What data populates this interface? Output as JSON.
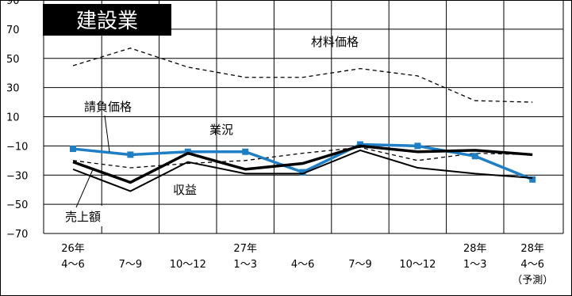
{
  "chart_data": {
    "type": "line",
    "title": "建設業",
    "ylim": [
      -70,
      90
    ],
    "yticks": [
      90,
      70,
      50,
      30,
      10,
      -10,
      -30,
      -50,
      -70
    ],
    "grid": true,
    "categories": [
      {
        "line1": "26年",
        "line2": "4〜6",
        "line3": ""
      },
      {
        "line1": "",
        "line2": "7〜9",
        "line3": ""
      },
      {
        "line1": "",
        "line2": "10〜12",
        "line3": ""
      },
      {
        "line1": "27年",
        "line2": "1〜3",
        "line3": ""
      },
      {
        "line1": "",
        "line2": "4〜6",
        "line3": ""
      },
      {
        "line1": "",
        "line2": "7〜9",
        "line3": ""
      },
      {
        "line1": "",
        "line2": "10〜12",
        "line3": ""
      },
      {
        "line1": "28年",
        "line2": "1〜3",
        "line3": ""
      },
      {
        "line1": "28年",
        "line2": "4〜6",
        "line3": "（予測）"
      }
    ],
    "series": [
      {
        "name": "材料価格",
        "style": "dashed",
        "color": "#000000",
        "values": [
          45,
          57,
          44,
          37,
          37,
          43,
          38,
          21,
          20
        ]
      },
      {
        "name": "業況",
        "style": "dashed",
        "color": "#000000",
        "values": [
          -20,
          -25,
          -22,
          -20,
          -15,
          -11,
          -20,
          -15,
          -16
        ]
      },
      {
        "name": "請負価格",
        "style": "blue",
        "color": "#1f7fc4",
        "values": [
          -12,
          -16,
          -14,
          -14,
          -28,
          -9,
          -10,
          -17,
          -33
        ]
      },
      {
        "name": "売上額",
        "style": "thick",
        "color": "#000000",
        "values": [
          -21,
          -35,
          -15,
          -26,
          -22,
          -10,
          -14,
          -13,
          -16
        ]
      },
      {
        "name": "収益",
        "style": "thin",
        "color": "#000000",
        "values": [
          -26,
          -41,
          -21,
          -29,
          -29,
          -13,
          -25,
          -29,
          -32
        ]
      }
    ]
  }
}
